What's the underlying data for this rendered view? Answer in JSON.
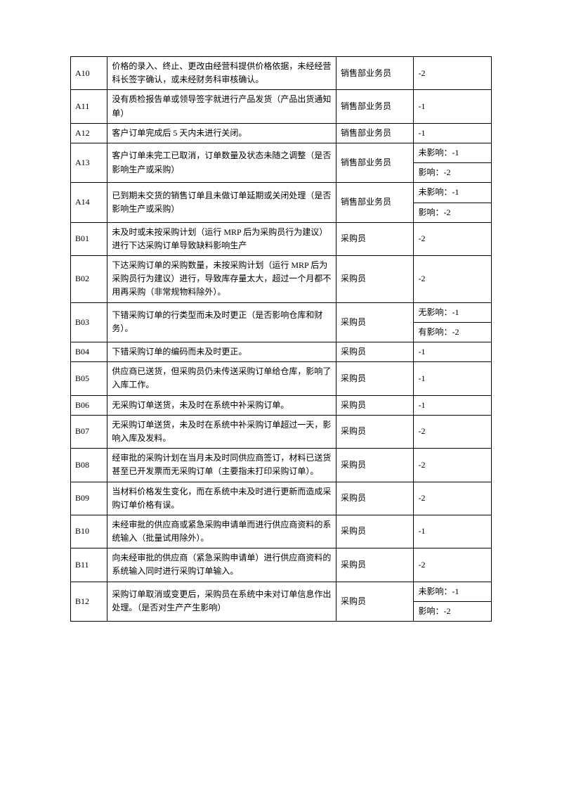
{
  "rows": [
    {
      "code": "A10",
      "desc": "价格的录入、终止、更改由经营科提供价格依据，未经经营科长签字确认，或未经财务科审核确认。",
      "role": "销售部业务员",
      "score": "-2"
    },
    {
      "code": "A11",
      "desc": "没有质检报告单或领导签字就进行产品发货（产品出货通知单）",
      "role": "销售部业务员",
      "score": "-1"
    },
    {
      "code": "A12",
      "desc": "客户订单完成后 5 天内未进行关闭。",
      "role": "销售部业务员",
      "score": "-1"
    },
    {
      "code": "A13",
      "desc": "客户订单未完工已取消，订单数量及状态未随之调整（是否影响生产或采购）",
      "role": "销售部业务员",
      "score_split": [
        "未影响：-1",
        "影响：-2"
      ]
    },
    {
      "code": "A14",
      "desc": "已到期未交货的销售订单且未做订单延期或关闭处理（是否影响生产或采购）",
      "role": "销售部业务员",
      "score_split": [
        "未影响：-1",
        "影响：-2"
      ]
    },
    {
      "code": "B01",
      "desc": "未及时或未按采购计划（运行 MRP 后为采购员行为建议）进行下达采购订单导致缺料影响生产",
      "role": "采购员",
      "score": "-2"
    },
    {
      "code": "B02",
      "desc": "下达采购订单的采购数量，未按采购计划（运行 MRP 后为采购员行为建议）进行，导致库存量太大，超过一个月都不用再采购（非常规物料除外）。",
      "role": "采购员",
      "score": "-2"
    },
    {
      "code": "B03",
      "desc": "下错采购订单的行类型而未及时更正（是否影响仓库和财务）。",
      "role": "采购员",
      "score_split": [
        "无影响：-1",
        "有影响：-2"
      ]
    },
    {
      "code": "B04",
      "desc": "下错采购订单的编码而未及时更正。",
      "role": "采购员",
      "score": "-1"
    },
    {
      "code": "B05",
      "desc": "供应商已送货，但采购员仍未传送采购订单给仓库，影响了入库工作。",
      "role": "采购员",
      "score": "-1"
    },
    {
      "code": "B06",
      "desc": "无采购订单送货，未及时在系统中补采购订单。",
      "role": "采购员",
      "score": "-1"
    },
    {
      "code": "B07",
      "desc": "无采购订单送货，未及时在系统中补采购订单超过一天，影响入库及发料。",
      "role": "采购员",
      "score": "-2"
    },
    {
      "code": "B08",
      "desc": "经审批的采购计划在当月未及时同供应商签订，材料已送货甚至已开发票而无采购订单（主要指未打印采购订单）。",
      "role": "采购员",
      "score": "-2"
    },
    {
      "code": "B09",
      "desc": "当材料价格发生变化，而在系统中未及时进行更新而造成采购订单价格有误。",
      "role": "采购员",
      "score": "-2"
    },
    {
      "code": "B10",
      "desc": "未经审批的供应商或紧急采购申请单而进行供应商资料的系统输入（批量试用除外）。",
      "role": "采购员",
      "score": "-1"
    },
    {
      "code": "B11",
      "desc": "向未经审批的供应商（紧急采购申请单）进行供应商资料的系统输入同时进行采购订单输入。",
      "role": "采购员",
      "score": "-2"
    },
    {
      "code": "B12",
      "desc": "采购订单取消或变更后，采购员在系统中未对订单信息作出处理。（是否对生产产生影响）",
      "role": "采购员",
      "score_split": [
        "未影响：-1",
        "影响：-2"
      ]
    }
  ]
}
